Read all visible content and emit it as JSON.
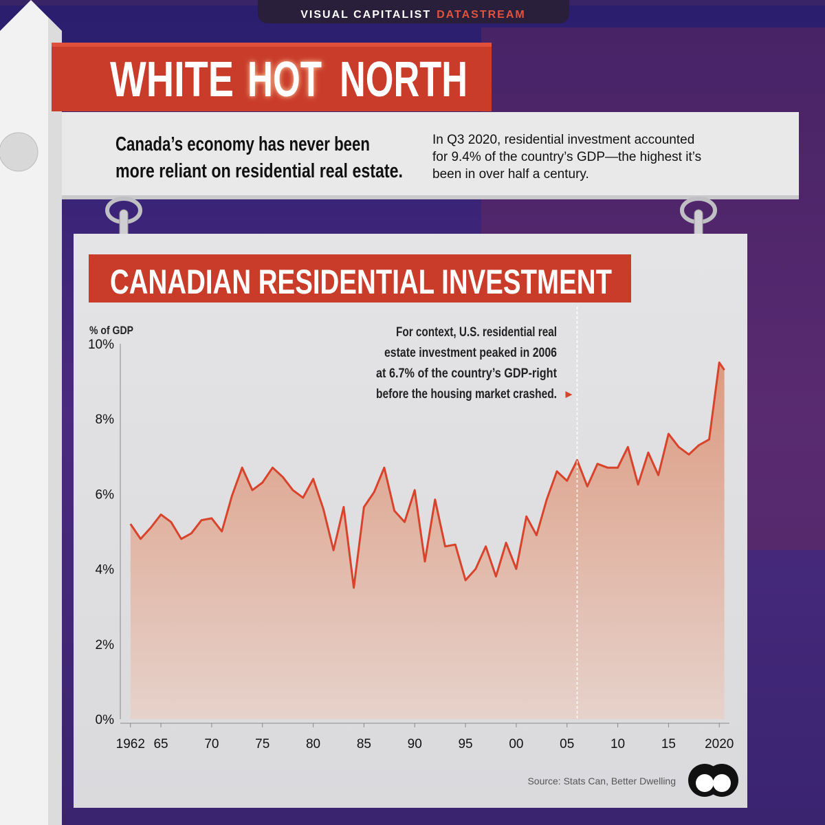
{
  "header": {
    "brand": "VISUAL CAPITALIST",
    "product": "DATASTREAM"
  },
  "title": {
    "parts": [
      "WHITE",
      "HOT",
      "NORTH"
    ]
  },
  "subtitle": {
    "lead": [
      "Canada’s economy has never been",
      "more reliant on residential real estate."
    ],
    "detail": [
      "In Q3 2020, residential investment accounted",
      "for 9.4% of the country’s GDP—the highest it’s",
      "been in over half a century."
    ]
  },
  "chart_data": {
    "type": "area",
    "title": "CANADIAN RESIDENTIAL INVESTMENT",
    "y_label": "% of GDP",
    "color": "#d8432c",
    "x": [
      1962,
      1963,
      1964,
      1965,
      1966,
      1967,
      1968,
      1969,
      1970,
      1971,
      1972,
      1973,
      1974,
      1975,
      1976,
      1977,
      1978,
      1979,
      1980,
      1981,
      1982,
      1983,
      1984,
      1985,
      1986,
      1987,
      1988,
      1989,
      1990,
      1991,
      1992,
      1993,
      1994,
      1995,
      1996,
      1997,
      1998,
      1999,
      2000,
      2001,
      2002,
      2003,
      2004,
      2005,
      2006,
      2007,
      2008,
      2009,
      2010,
      2011,
      2012,
      2013,
      2014,
      2015,
      2016,
      2017,
      2018,
      2019,
      2020,
      2020.5
    ],
    "values": [
      5.2,
      4.8,
      5.1,
      5.45,
      5.25,
      4.8,
      4.95,
      5.3,
      5.35,
      5.0,
      5.95,
      6.7,
      6.1,
      6.3,
      6.7,
      6.45,
      6.1,
      5.9,
      6.4,
      5.6,
      4.5,
      5.65,
      3.5,
      5.65,
      6.05,
      6.7,
      5.55,
      5.25,
      6.1,
      4.2,
      5.85,
      4.6,
      4.65,
      3.7,
      4.0,
      4.6,
      3.8,
      4.7,
      4.0,
      5.4,
      4.9,
      5.85,
      6.6,
      6.35,
      6.9,
      6.2,
      6.8,
      6.7,
      6.7,
      7.25,
      6.25,
      7.1,
      6.5,
      7.6,
      7.25,
      7.05,
      7.3,
      7.45,
      9.5,
      9.3
    ],
    "xlim": [
      1961,
      2021
    ],
    "xticks": [
      1962,
      {
        "value": 1965,
        "label": "65"
      },
      {
        "value": 1970,
        "label": "70"
      },
      {
        "value": 1975,
        "label": "75"
      },
      {
        "value": 1980,
        "label": "80"
      },
      {
        "value": 1985,
        "label": "85"
      },
      {
        "value": 1990,
        "label": "90"
      },
      {
        "value": 1995,
        "label": "95"
      },
      {
        "value": 2000,
        "label": "00"
      },
      {
        "value": 2005,
        "label": "05"
      },
      {
        "value": 2010,
        "label": "10"
      },
      {
        "value": 2015,
        "label": "15"
      },
      2020
    ],
    "ylim": [
      0,
      10
    ],
    "yticks": [
      {
        "value": 0,
        "label": "0%"
      },
      {
        "value": 2,
        "label": "2%"
      },
      {
        "value": 4,
        "label": "4%"
      },
      {
        "value": 6,
        "label": "6%"
      },
      {
        "value": 8,
        "label": "8%"
      },
      {
        "value": 10,
        "label": "10%"
      }
    ],
    "annotation": {
      "x": 2006,
      "lines": [
        "For context, U.S. residential real",
        "estate investment peaked in 2006",
        "at 6.7% of the country’s GDP-right",
        "before the housing market crashed."
      ]
    }
  },
  "source": "Source: Stats Can, Better Dwelling"
}
